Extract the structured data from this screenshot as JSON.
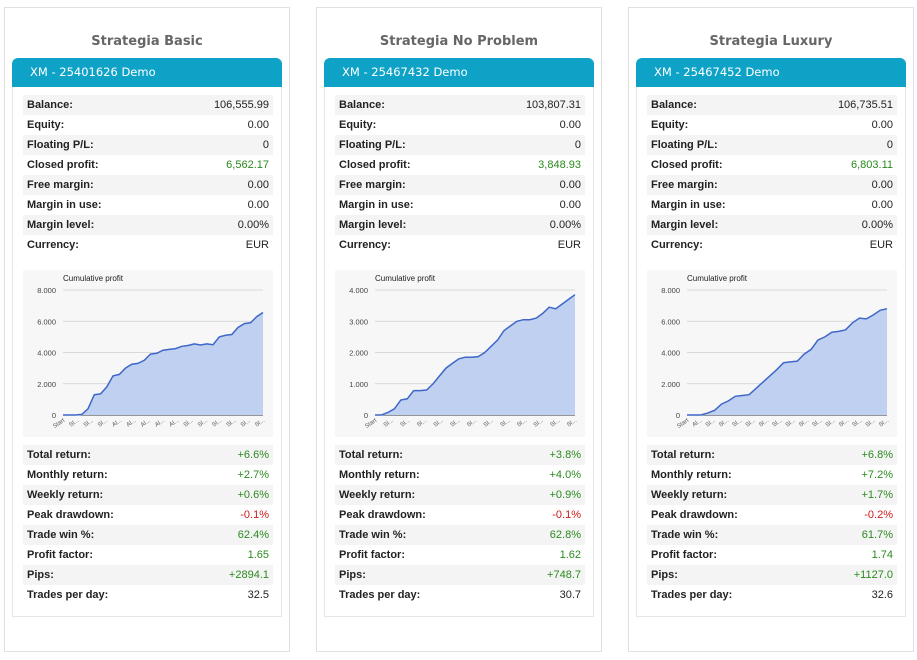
{
  "panels": [
    {
      "title": "Strategia Basic",
      "account": "XM - 25401626 Demo",
      "summary": [
        {
          "label": "Balance:",
          "value": "106,555.99",
          "tone": "plain"
        },
        {
          "label": "Equity:",
          "value": "0.00",
          "tone": "plain"
        },
        {
          "label": "Floating P/L:",
          "value": "0",
          "tone": "plain"
        },
        {
          "label": "Closed profit:",
          "value": "6,562.17",
          "tone": "pos"
        },
        {
          "label": "Free margin:",
          "value": "0.00",
          "tone": "plain"
        },
        {
          "label": "Margin in use:",
          "value": "0.00",
          "tone": "plain"
        },
        {
          "label": "Margin level:",
          "value": "0.00%",
          "tone": "plain"
        },
        {
          "label": "Currency:",
          "value": "EUR",
          "tone": "plain"
        }
      ],
      "performance": [
        {
          "label": "Total return:",
          "value": "+6.6%",
          "tone": "pos"
        },
        {
          "label": "Monthly return:",
          "value": "+2.7%",
          "tone": "pos"
        },
        {
          "label": "Weekly return:",
          "value": "+0.6%",
          "tone": "pos"
        },
        {
          "label": "Peak drawdown:",
          "value": "-0.1%",
          "tone": "neg"
        },
        {
          "label": "Trade win %:",
          "value": "62.4%",
          "tone": "pos"
        },
        {
          "label": "Profit factor:",
          "value": "1.65",
          "tone": "pos"
        },
        {
          "label": "Pips:",
          "value": "+2894.1",
          "tone": "pos"
        },
        {
          "label": "Trades per day:",
          "value": "32.5",
          "tone": "plain"
        }
      ]
    },
    {
      "title": "Strategia No Problem",
      "account": "XM - 25467432 Demo",
      "summary": [
        {
          "label": "Balance:",
          "value": "103,807.31",
          "tone": "plain"
        },
        {
          "label": "Equity:",
          "value": "0.00",
          "tone": "plain"
        },
        {
          "label": "Floating P/L:",
          "value": "0",
          "tone": "plain"
        },
        {
          "label": "Closed profit:",
          "value": "3,848.93",
          "tone": "pos"
        },
        {
          "label": "Free margin:",
          "value": "0.00",
          "tone": "plain"
        },
        {
          "label": "Margin in use:",
          "value": "0.00",
          "tone": "plain"
        },
        {
          "label": "Margin level:",
          "value": "0.00%",
          "tone": "plain"
        },
        {
          "label": "Currency:",
          "value": "EUR",
          "tone": "plain"
        }
      ],
      "performance": [
        {
          "label": "Total return:",
          "value": "+3.8%",
          "tone": "pos"
        },
        {
          "label": "Monthly return:",
          "value": "+4.0%",
          "tone": "pos"
        },
        {
          "label": "Weekly return:",
          "value": "+0.9%",
          "tone": "pos"
        },
        {
          "label": "Peak drawdown:",
          "value": "-0.1%",
          "tone": "neg"
        },
        {
          "label": "Trade win %:",
          "value": "62.8%",
          "tone": "pos"
        },
        {
          "label": "Profit factor:",
          "value": "1.62",
          "tone": "pos"
        },
        {
          "label": "Pips:",
          "value": "+748.7",
          "tone": "pos"
        },
        {
          "label": "Trades per day:",
          "value": "30.7",
          "tone": "plain"
        }
      ]
    },
    {
      "title": "Strategia Luxury",
      "account": "XM - 25467452 Demo",
      "summary": [
        {
          "label": "Balance:",
          "value": "106,735.51",
          "tone": "plain"
        },
        {
          "label": "Equity:",
          "value": "0.00",
          "tone": "plain"
        },
        {
          "label": "Floating P/L:",
          "value": "0",
          "tone": "plain"
        },
        {
          "label": "Closed profit:",
          "value": "6,803.11",
          "tone": "pos"
        },
        {
          "label": "Free margin:",
          "value": "0.00",
          "tone": "plain"
        },
        {
          "label": "Margin in use:",
          "value": "0.00",
          "tone": "plain"
        },
        {
          "label": "Margin level:",
          "value": "0.00%",
          "tone": "plain"
        },
        {
          "label": "Currency:",
          "value": "EUR",
          "tone": "plain"
        }
      ],
      "performance": [
        {
          "label": "Total return:",
          "value": "+6.8%",
          "tone": "pos"
        },
        {
          "label": "Monthly return:",
          "value": "+7.2%",
          "tone": "pos"
        },
        {
          "label": "Weekly return:",
          "value": "+1.7%",
          "tone": "pos"
        },
        {
          "label": "Peak drawdown:",
          "value": "-0.2%",
          "tone": "neg"
        },
        {
          "label": "Trade win %:",
          "value": "61.7%",
          "tone": "pos"
        },
        {
          "label": "Profit factor:",
          "value": "1.74",
          "tone": "pos"
        },
        {
          "label": "Pips:",
          "value": "+1127.0",
          "tone": "pos"
        },
        {
          "label": "Trades per day:",
          "value": "32.6",
          "tone": "plain"
        }
      ]
    }
  ],
  "colors": {
    "header": "#0ea3c6",
    "positive": "#2a8a1e",
    "negative": "#cc1a1a",
    "line": "#3f67c8",
    "fill": "#bfd0f0"
  },
  "chart_data": [
    {
      "type": "area",
      "title": "Cumulative profit",
      "xlabel": "",
      "ylabel": "",
      "ylim": [
        0,
        8000
      ],
      "y_ticks": [
        "0",
        "2.000",
        "4.000",
        "6.000",
        "8.000"
      ],
      "x_ticks": [
        "Start",
        "Sl...",
        "Sl...",
        "Sl...",
        "Al...",
        "Al...",
        "Al...",
        "Al...",
        "Al...",
        "Sl...",
        "Sl...",
        "Sl...",
        "Sl...",
        "Sl...",
        "Sl..."
      ],
      "grid": true,
      "series": [
        {
          "values": [
            0,
            0,
            0,
            40,
            400,
            1300,
            1350,
            1800,
            2500,
            2600,
            3000,
            3250,
            3300,
            3500,
            3900,
            3950,
            4150,
            4200,
            4250,
            4400,
            4450,
            4550,
            4480,
            4550,
            4500,
            5000,
            5100,
            5150,
            5600,
            5850,
            5900,
            6300,
            6562
          ]
        }
      ]
    },
    {
      "type": "area",
      "title": "Cumulative profit",
      "xlabel": "",
      "ylabel": "",
      "ylim": [
        0,
        4000
      ],
      "y_ticks": [
        "0",
        "1.000",
        "2.000",
        "3.000",
        "4.000"
      ],
      "x_ticks": [
        "Start",
        "Sl...",
        "Sl...",
        "Sl...",
        "Sl...",
        "Sl...",
        "Sl...",
        "Sl...",
        "Sl...",
        "Sl...",
        "Sl...",
        "Sl...",
        "Sl..."
      ],
      "grid": true,
      "series": [
        {
          "values": [
            0,
            0,
            80,
            200,
            480,
            520,
            780,
            780,
            800,
            1000,
            1250,
            1500,
            1650,
            1800,
            1850,
            1850,
            1870,
            2000,
            2200,
            2400,
            2700,
            2850,
            3000,
            3050,
            3050,
            3100,
            3250,
            3450,
            3400,
            3550,
            3700,
            3849
          ]
        }
      ]
    },
    {
      "type": "area",
      "title": "Cumulative profit",
      "xlabel": "",
      "ylabel": "",
      "ylim": [
        0,
        8000
      ],
      "y_ticks": [
        "0",
        "2.000",
        "4.000",
        "6.000",
        "8.000"
      ],
      "x_ticks": [
        "Start",
        "Al...",
        "Sl...",
        "Sl...",
        "Sl...",
        "Sl...",
        "Sl...",
        "Sl...",
        "Sl...",
        "Sl...",
        "Sl...",
        "Sl...",
        "Sl...",
        "Sl...",
        "Sl...",
        "Sl..."
      ],
      "grid": true,
      "series": [
        {
          "values": [
            0,
            0,
            0,
            120,
            300,
            700,
            900,
            1200,
            1250,
            1300,
            1700,
            2100,
            2500,
            2900,
            3350,
            3400,
            3450,
            3900,
            4200,
            4800,
            5000,
            5300,
            5350,
            5450,
            5900,
            6200,
            6150,
            6400,
            6700,
            6803
          ]
        }
      ]
    }
  ]
}
